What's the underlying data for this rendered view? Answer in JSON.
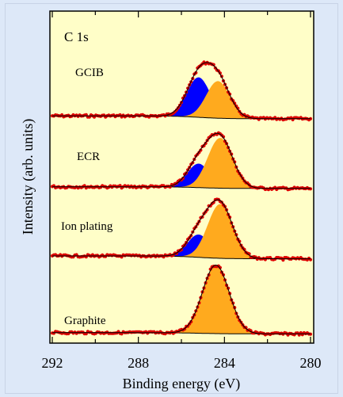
{
  "chart_data": {
    "type": "line",
    "title": "C 1s",
    "xlabel": "Binding energy (eV)",
    "ylabel": "Intensity (arb. units)",
    "xlim": [
      292,
      280
    ],
    "x_ticks": [
      292,
      288,
      284,
      280
    ],
    "x_reversed": true,
    "grid": false,
    "colors": {
      "plot_bg": "#fffec8",
      "sp3_peak": "#0000ff",
      "sp2_peak": "#ffaa1e",
      "data_points": "#dd0000",
      "fit": "#000000"
    },
    "panels": [
      {
        "label": "GCIB",
        "components": [
          {
            "name": "",
            "center": 285.2,
            "width": 0.55,
            "amplitude": 0.7,
            "color": "#0000ff"
          },
          {
            "name": "",
            "center": 284.3,
            "width": 0.55,
            "amplitude": 0.65,
            "color": "#ffaa1e"
          }
        ],
        "background_left": 0.08,
        "background_right": 0.03
      },
      {
        "label": "ECR",
        "components": [
          {
            "name": "",
            "center": 285.2,
            "width": 0.52,
            "amplitude": 0.42,
            "color": "#0000ff"
          },
          {
            "name": "",
            "center": 284.2,
            "width": 0.58,
            "amplitude": 0.88,
            "color": "#ffaa1e"
          }
        ],
        "background_left": 0.06,
        "background_right": 0.03
      },
      {
        "label": "Ion plating",
        "components": [
          {
            "name": "",
            "center": 285.2,
            "width": 0.52,
            "amplitude": 0.4,
            "color": "#0000ff"
          },
          {
            "name": "",
            "center": 284.2,
            "width": 0.58,
            "amplitude": 0.95,
            "color": "#ffaa1e"
          }
        ],
        "background_left": 0.07,
        "background_right": 0.02
      },
      {
        "label": "Graphite",
        "components": [
          {
            "name": "",
            "center": 284.4,
            "width": 0.62,
            "amplitude": 1.2,
            "color": "#ffaa1e"
          }
        ],
        "background_left": 0.03,
        "background_right": 0.01
      }
    ]
  }
}
